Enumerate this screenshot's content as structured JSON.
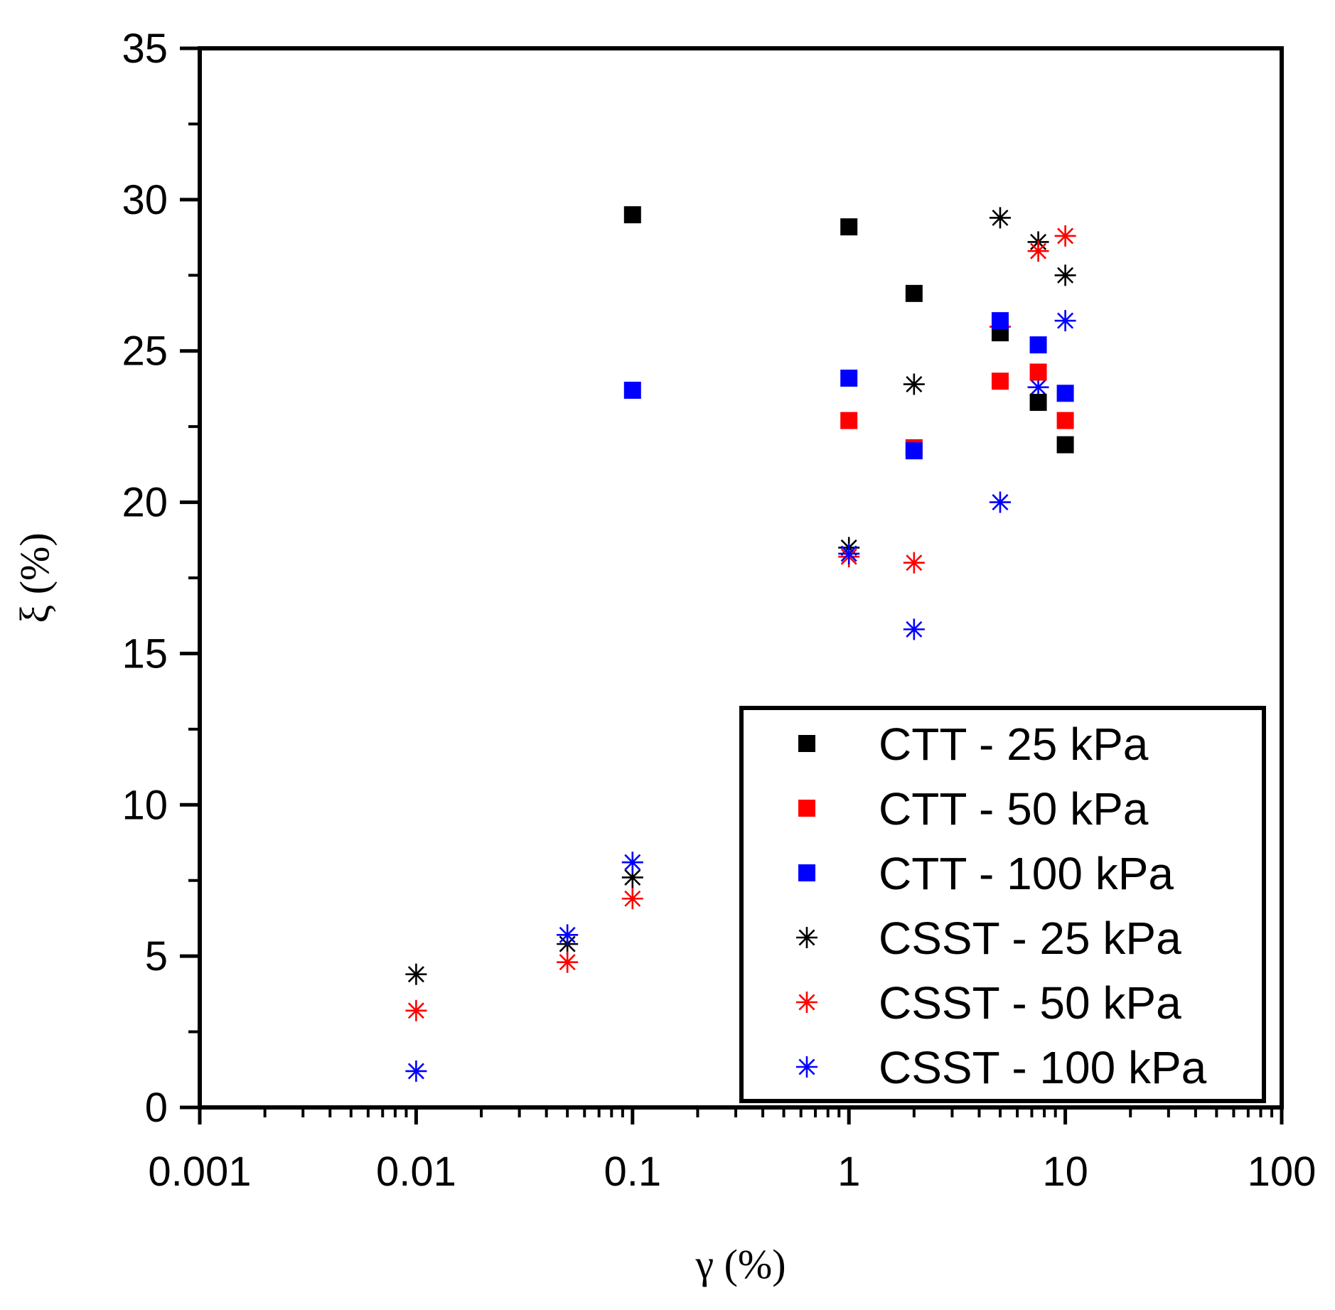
{
  "chart_data": {
    "type": "scatter",
    "title": "",
    "xlabel": "γ (%)",
    "ylabel": "ξ (%)",
    "xscale": "log",
    "xlim": [
      0.001,
      100
    ],
    "ylim": [
      0,
      35
    ],
    "x_ticks": [
      {
        "value": 0.001,
        "label": "0.001"
      },
      {
        "value": 0.01,
        "label": "0.01"
      },
      {
        "value": 0.1,
        "label": "0.1"
      },
      {
        "value": 1,
        "label": "1"
      },
      {
        "value": 10,
        "label": "10"
      },
      {
        "value": 100,
        "label": "100"
      }
    ],
    "y_ticks": [
      {
        "value": 0,
        "label": "0"
      },
      {
        "value": 5,
        "label": "5"
      },
      {
        "value": 10,
        "label": "10"
      },
      {
        "value": 15,
        "label": "15"
      },
      {
        "value": 20,
        "label": "20"
      },
      {
        "value": 25,
        "label": "25"
      },
      {
        "value": 30,
        "label": "30"
      },
      {
        "value": 35,
        "label": "35"
      }
    ],
    "grid": false,
    "legend_position": "bottom-right",
    "series": [
      {
        "name": "CTT - 25 kPa",
        "marker": "square",
        "color": "#000000",
        "points": [
          [
            0.1,
            29.5
          ],
          [
            1,
            29.1
          ],
          [
            2,
            26.9
          ],
          [
            5,
            25.6
          ],
          [
            7.5,
            23.3
          ],
          [
            10,
            21.9
          ]
        ]
      },
      {
        "name": "CTT - 50 kPa",
        "marker": "square",
        "color": "#ff0000",
        "points": [
          [
            1,
            22.7
          ],
          [
            2,
            21.8
          ],
          [
            5,
            24.0
          ],
          [
            7.5,
            24.3
          ],
          [
            10,
            22.7
          ]
        ]
      },
      {
        "name": "CTT - 100 kPa",
        "marker": "square",
        "color": "#0000ff",
        "points": [
          [
            0.1,
            23.7
          ],
          [
            1,
            24.1
          ],
          [
            2,
            21.7
          ],
          [
            5,
            26.0
          ],
          [
            7.5,
            25.2
          ],
          [
            10,
            23.6
          ]
        ]
      },
      {
        "name": "CSST - 25 kPa",
        "marker": "asterisk",
        "color": "#000000",
        "points": [
          [
            0.01,
            4.4
          ],
          [
            0.05,
            5.4
          ],
          [
            0.1,
            7.6
          ],
          [
            1,
            18.5
          ],
          [
            2,
            23.9
          ],
          [
            5,
            29.4
          ],
          [
            7.5,
            28.6
          ],
          [
            10,
            27.5
          ]
        ]
      },
      {
        "name": "CSST - 50 kPa",
        "marker": "asterisk",
        "color": "#ff0000",
        "points": [
          [
            0.01,
            3.2
          ],
          [
            0.05,
            4.8
          ],
          [
            0.1,
            6.9
          ],
          [
            1,
            18.2
          ],
          [
            2,
            18.0
          ],
          [
            5,
            25.8
          ],
          [
            7.5,
            28.3
          ],
          [
            10,
            28.8
          ]
        ]
      },
      {
        "name": "CSST - 100 kPa",
        "marker": "asterisk",
        "color": "#0000ff",
        "points": [
          [
            0.01,
            1.2
          ],
          [
            0.05,
            5.7
          ],
          [
            0.1,
            8.1
          ],
          [
            1,
            18.3
          ],
          [
            2,
            15.8
          ],
          [
            5,
            20.0
          ],
          [
            7.5,
            23.8
          ],
          [
            10,
            26.0
          ]
        ]
      }
    ]
  }
}
